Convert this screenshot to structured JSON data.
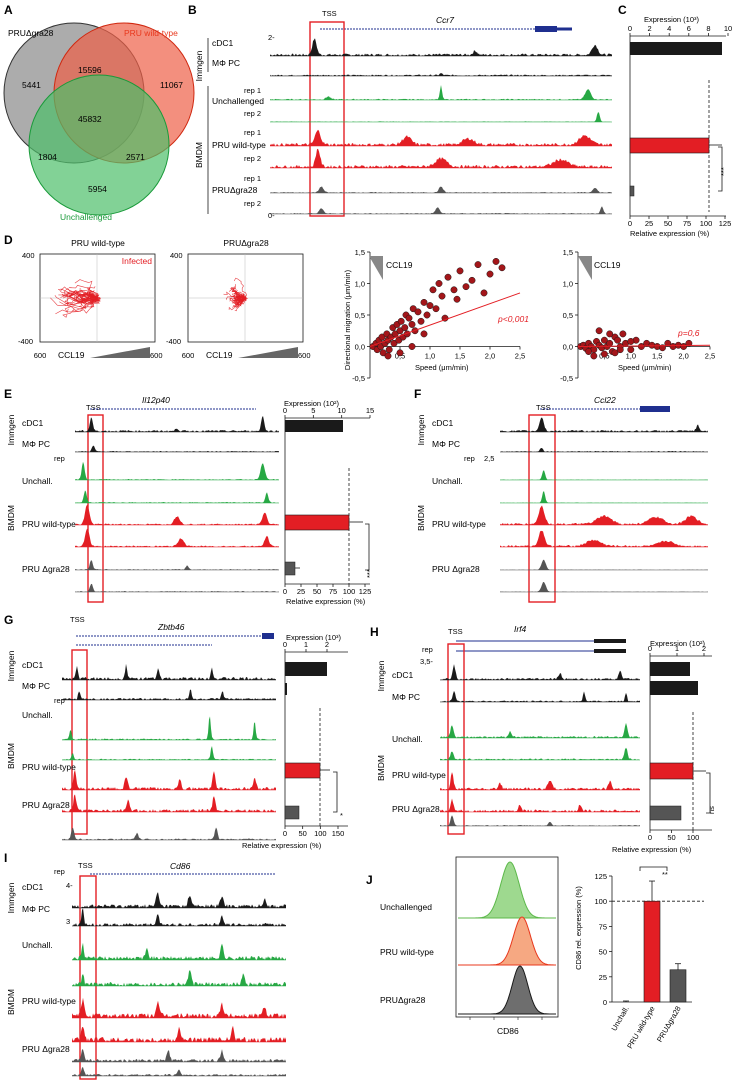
{
  "panels": {
    "A": {
      "letter": "A",
      "sets": [
        "PRUΔgra28",
        "PRU wild-type",
        "Unchallenged"
      ],
      "set_colors": [
        "#4d4d4d",
        "#e8381d",
        "#1a9a3a"
      ],
      "counts": {
        "only_gra28": "5441",
        "gra28_wt": "15596",
        "only_wt": "11067",
        "all": "45832",
        "gra28_unch": "1804",
        "wt_unch": "2571",
        "only_unch": "5954"
      }
    },
    "B": {
      "letter": "B",
      "tss": "TSS",
      "gene": "Ccr7",
      "group_immgen": "Immgen",
      "group_bmdm": "BMDM",
      "tracks": [
        "cDC1",
        "MΦ PC",
        "Unchallenged",
        "PRU wild-type",
        "PRUΔgra28"
      ],
      "reps": [
        "rep 1",
        "rep 2"
      ],
      "scale_top": "2-",
      "scale_bottom": "0-"
    },
    "C": {
      "letter": "C",
      "top_axis_title": "Expression (10³)",
      "top_ticks": [
        "0",
        "2",
        "4",
        "6",
        "8",
        "10"
      ],
      "bottom_axis_title": "Relative expression (%)",
      "bottom_ticks": [
        "0",
        "25",
        "50",
        "75",
        "100",
        "125"
      ],
      "significance": "***"
    },
    "D": {
      "letter": "D",
      "track_titles": [
        "PRU wild-type",
        "PRUΔgra28"
      ],
      "infected_label": "Infected",
      "axis_max": "400",
      "axis_min": "-400",
      "x_left": "600",
      "x_right": "-600",
      "gradient_label": "CCL19",
      "scatter_ylabel": "Directional migration (μm/min)",
      "scatter_xlabel": "Speed (μm/min)",
      "y_ticks": [
        "1,5",
        "1,0",
        "0,5",
        "0,0",
        "-0,5"
      ],
      "x_ticks": [
        "0,5",
        "1,0",
        "1,5",
        "2,0",
        "2,5"
      ],
      "p_wt": "p<0,001",
      "p_gra28": "p=0,6"
    },
    "E": {
      "letter": "E",
      "tss": "TSS",
      "gene": "Il12p40",
      "rows": [
        "cDC1",
        "MΦ PC",
        "Unchall.",
        "PRU wild-type",
        "PRU Δgra28"
      ],
      "rep": "rep",
      "top_axis_title": "Expression (10²)",
      "top_ticks": [
        "0",
        "5",
        "10",
        "15"
      ],
      "bottom_ticks": [
        "0",
        "25",
        "50",
        "75",
        "100",
        "125"
      ],
      "bottom_axis_title": "Relative expression (%)",
      "significance": "***"
    },
    "F": {
      "letter": "F",
      "tss": "TSS",
      "gene": "Ccl22",
      "rows": [
        "cDC1",
        "MΦ PC",
        "Unchall.",
        "PRU wild-type",
        "PRU Δgra28"
      ],
      "rep": "rep",
      "scale": "2,5"
    },
    "G": {
      "letter": "G",
      "tss": "TSS",
      "gene": "Zbtb46",
      "top_axis_title": "Expression (10³)",
      "top_ticks": [
        "0",
        "1",
        "2"
      ],
      "bottom_ticks": [
        "0",
        "50",
        "100",
        "150"
      ],
      "bottom_axis_title": "Relative expression (%)",
      "significance": "*"
    },
    "H": {
      "letter": "H",
      "tss": "TSS",
      "gene": "Irf4",
      "top_axis_title": "Expression (10²)",
      "top_ticks": [
        "0",
        "1",
        "2"
      ],
      "bottom_ticks": [
        "0",
        "50",
        "100"
      ],
      "bottom_axis_title": "Relative expression (%)",
      "significance": "ns",
      "scale": "3,5-"
    },
    "I": {
      "letter": "I",
      "tss": "TSS",
      "gene": "Cd86",
      "scale_top": "4-",
      "scale_mid": "3"
    },
    "J": {
      "letter": "J",
      "flow_labels": [
        "Unchallenged",
        "PRU wild-type",
        "PRUΔgra28"
      ],
      "flow_xlabel": "CD86",
      "bar_ylabel": "CD86 rel. expression (%)",
      "bar_y_ticks": [
        "0",
        "25",
        "50",
        "75",
        "100",
        "125"
      ],
      "bar_categories": [
        "Unchall.",
        "PRU wild-type",
        "PRUΔgra28"
      ],
      "significance": "**"
    }
  },
  "colors": {
    "black": "#1a1a1a",
    "red": "#e31e24",
    "green": "#27a844",
    "grey": "#555555",
    "gene_blue": "#1f2f8f",
    "box": "#e31e24"
  },
  "chart_data": [
    {
      "type": "bar",
      "panel": "C",
      "categories": [
        "cDC1",
        "PRU wild-type",
        "PRUΔgra28"
      ],
      "values_expression_1e3": [
        9.3
      ],
      "relative_expression_percent": {
        "Unchallenged": 0,
        "PRU wild-type": 100,
        "PRUΔgra28": 5
      },
      "xlim_expression": [
        0,
        10
      ],
      "xlim_relative": [
        0,
        125
      ]
    },
    {
      "type": "bar",
      "panel": "E",
      "categories": [
        "cDC1",
        "PRU wild-type",
        "PRU Δgra28"
      ],
      "values_expression_1e2": [
        10.2
      ],
      "relative_expression_percent": {
        "Unchall.": 0,
        "PRU wild-type": 110,
        "PRU Δgra28": 15
      },
      "xlim_expression": [
        0,
        15
      ],
      "xlim_relative": [
        0,
        125
      ]
    },
    {
      "type": "bar",
      "panel": "G",
      "categories": [
        "cDC1",
        "MΦ PC",
        "PRU wild-type",
        "PRU Δgra28"
      ],
      "values_expression_1e3": [
        1.7,
        0.05
      ],
      "relative_expression_percent": {
        "Unchall.": 0,
        "PRU wild-type": 100,
        "PRU Δgra28": 40
      },
      "xlim_expression": [
        0,
        2
      ],
      "xlim_relative": [
        0,
        150
      ]
    },
    {
      "type": "bar",
      "panel": "H",
      "categories": [
        "cDC1",
        "MΦ PC",
        "PRU wild-type",
        "PRU Δgra28"
      ],
      "values_expression_1e2": [
        1.5,
        1.75
      ],
      "relative_expression_percent": {
        "Unchall.": 0,
        "PRU wild-type": 100,
        "PRU Δgra28": 70
      },
      "xlim_expression": [
        0,
        2
      ],
      "xlim_relative": [
        0,
        125
      ]
    },
    {
      "type": "scatter",
      "panel": "D-wt",
      "xlabel": "Speed (μm/min)",
      "ylabel": "Directional migration (μm/min)",
      "xlim": [
        0,
        2.5
      ],
      "ylim": [
        -0.5,
        1.5
      ],
      "x": [
        0.05,
        0.1,
        0.12,
        0.15,
        0.18,
        0.2,
        0.22,
        0.25,
        0.28,
        0.3,
        0.32,
        0.35,
        0.38,
        0.4,
        0.42,
        0.45,
        0.48,
        0.5,
        0.52,
        0.55,
        0.58,
        0.6,
        0.62,
        0.65,
        0.7,
        0.72,
        0.75,
        0.8,
        0.85,
        0.9,
        0.95,
        1.0,
        1.05,
        1.1,
        1.15,
        1.2,
        1.3,
        1.4,
        1.5,
        1.6,
        1.7,
        1.8,
        1.9,
        2.0,
        2.1,
        2.2,
        0.3,
        0.5,
        0.7,
        1.25,
        1.45,
        0.9
      ],
      "y": [
        0.0,
        0.05,
        -0.05,
        0.1,
        0.0,
        0.15,
        -0.1,
        0.05,
        0.2,
        0.1,
        -0.05,
        0.15,
        0.3,
        0.05,
        0.2,
        0.35,
        0.1,
        0.25,
        0.4,
        0.15,
        0.3,
        0.5,
        0.2,
        0.45,
        0.35,
        0.6,
        0.25,
        0.55,
        0.4,
        0.7,
        0.5,
        0.65,
        0.9,
        0.6,
        1.0,
        0.8,
        1.1,
        0.9,
        1.2,
        0.95,
        1.05,
        1.3,
        0.85,
        1.15,
        1.35,
        1.25,
        -0.15,
        -0.1,
        0.0,
        0.45,
        0.75,
        0.2
      ],
      "trend": {
        "x": [
          0,
          2.5
        ],
        "y": [
          0.0,
          0.85
        ]
      },
      "annotation": "p<0,001"
    },
    {
      "type": "scatter",
      "panel": "D-gra28",
      "xlabel": "Speed (μm/min)",
      "xlim": [
        0,
        2.5
      ],
      "ylim": [
        -0.5,
        1.5
      ],
      "x": [
        0.05,
        0.1,
        0.15,
        0.2,
        0.25,
        0.3,
        0.35,
        0.4,
        0.45,
        0.5,
        0.55,
        0.6,
        0.65,
        0.7,
        0.75,
        0.8,
        0.85,
        0.9,
        1.0,
        1.1,
        1.2,
        1.3,
        1.4,
        1.5,
        1.6,
        1.7,
        1.8,
        1.9,
        2.0,
        2.1,
        0.3,
        0.5,
        0.7,
        0.4,
        0.6,
        0.2,
        0.8,
        1.0
      ],
      "y": [
        0.0,
        0.02,
        -0.03,
        0.05,
        0.0,
        -0.05,
        0.08,
        0.02,
        -0.02,
        0.1,
        0.0,
        0.05,
        -0.08,
        0.15,
        0.1,
        0.0,
        0.2,
        0.05,
        -0.05,
        0.1,
        0.0,
        0.05,
        0.02,
        0.0,
        -0.02,
        0.05,
        0.0,
        0.02,
        0.0,
        0.05,
        -0.15,
        -0.12,
        -0.1,
        0.25,
        0.2,
        -0.08,
        -0.05,
        0.08
      ],
      "trend": {
        "x": [
          0,
          2.5
        ],
        "y": [
          0.0,
          0.02
        ]
      },
      "annotation": "p=0,6"
    },
    {
      "type": "bar",
      "panel": "J",
      "categories": [
        "Unchall.",
        "PRU wild-type",
        "PRUΔgra28"
      ],
      "values": [
        0,
        100,
        32
      ],
      "errors": [
        1,
        20,
        6
      ],
      "ylabel": "CD86 rel. expression (%)",
      "ylim": [
        0,
        125
      ]
    }
  ]
}
